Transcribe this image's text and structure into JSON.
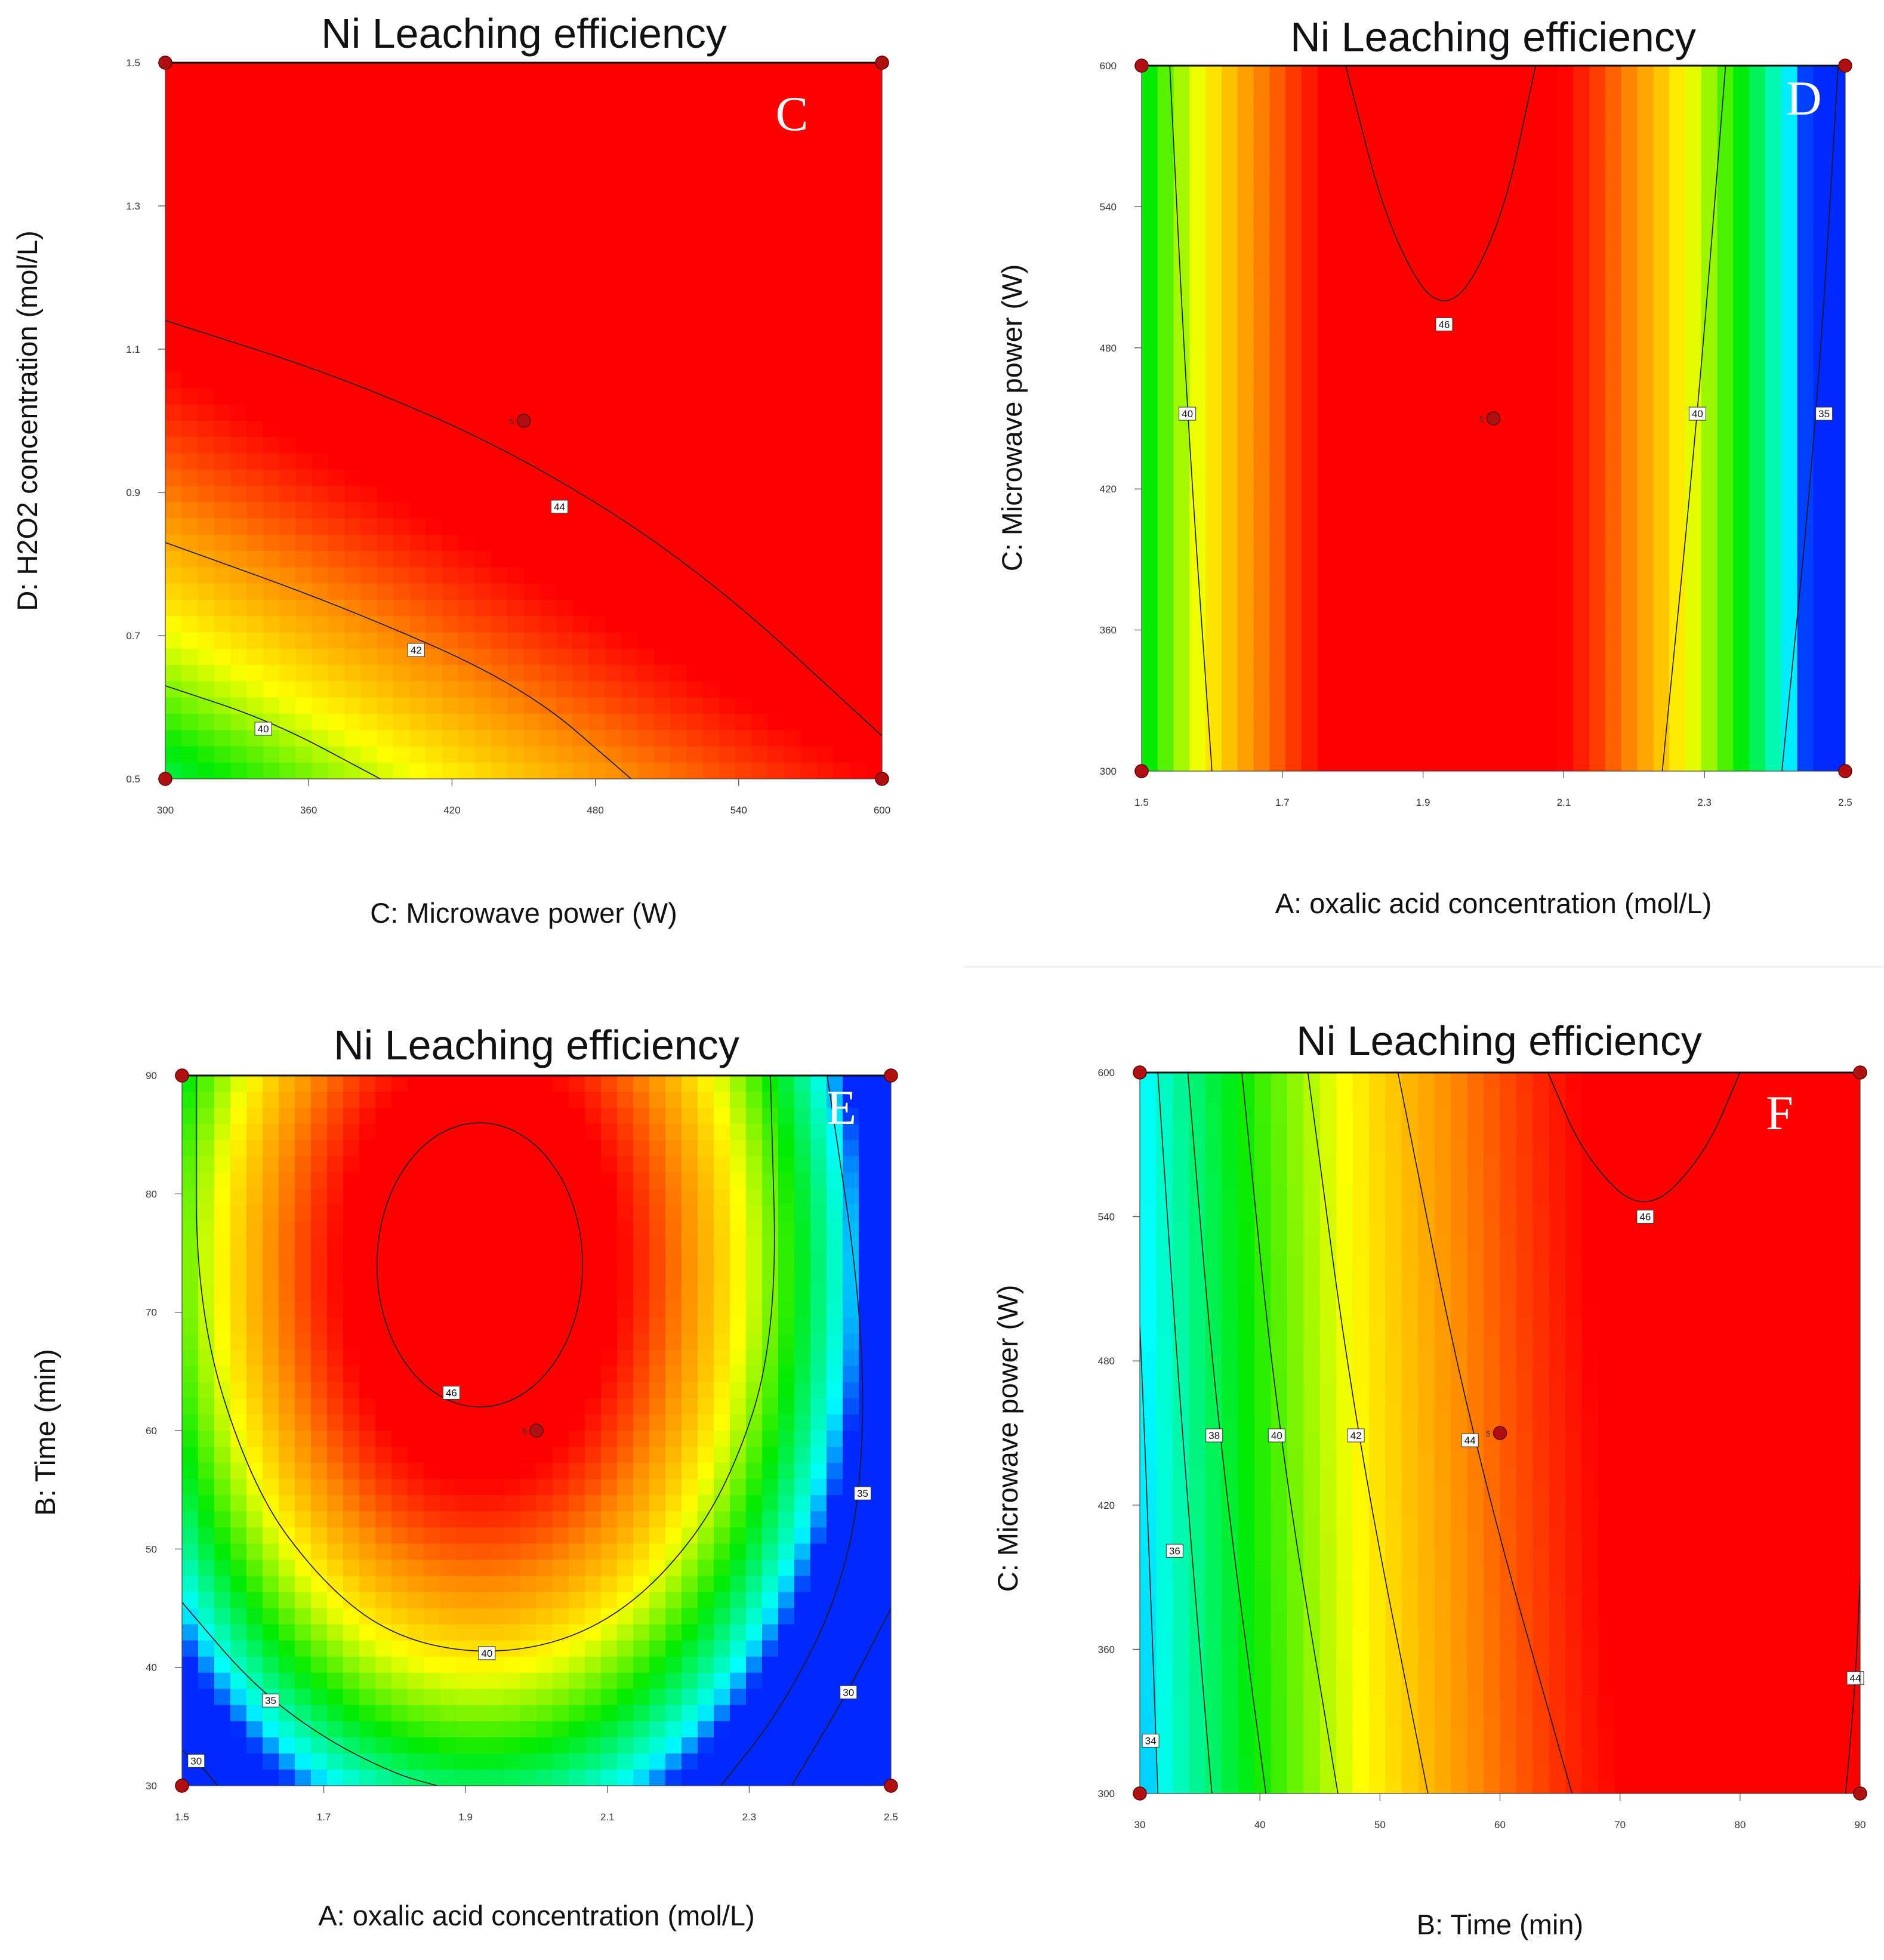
{
  "figure_title": "Ni Leaching efficiency",
  "chart_data": [
    {
      "panel": "C",
      "type": "heatmap",
      "title": "Ni Leaching efficiency",
      "xlabel": "C: Microwave power (W)",
      "ylabel": "D: H2O2 concentration (mol/L)",
      "xlim": [
        300,
        600
      ],
      "ylim": [
        0.5,
        1.5
      ],
      "xticks": [
        "300",
        "360",
        "420",
        "480",
        "540",
        "600"
      ],
      "yticks": [
        "0.5",
        "0.7",
        "0.9",
        "1.1",
        "1.3",
        "1.5"
      ],
      "contour_labels": [
        "40",
        "42",
        "44"
      ],
      "center_point_label": "5",
      "design_points": [
        {
          "x": 300,
          "y": 1.5
        },
        {
          "x": 600,
          "y": 1.5
        },
        {
          "x": 300,
          "y": 0.5
        },
        {
          "x": 600,
          "y": 0.5
        },
        {
          "x": 450,
          "y": 1.0
        }
      ],
      "contours": [
        {
          "level": 44,
          "label_at": {
            "x": 465,
            "y": 0.88
          },
          "points": [
            [
              300,
              1.14
            ],
            [
              375,
              1.06
            ],
            [
              450,
              0.95
            ],
            [
              525,
              0.79
            ],
            [
              600,
              0.56
            ]
          ]
        },
        {
          "level": 42,
          "label_at": {
            "x": 405,
            "y": 0.68
          },
          "points": [
            [
              300,
              0.83
            ],
            [
              375,
              0.74
            ],
            [
              450,
              0.63
            ],
            [
              495,
              0.5
            ]
          ]
        },
        {
          "level": 40,
          "label_at": {
            "x": 341,
            "y": 0.57
          },
          "points": [
            [
              300,
              0.63
            ],
            [
              345,
              0.58
            ],
            [
              390,
              0.5
            ]
          ]
        }
      ]
    },
    {
      "panel": "D",
      "type": "heatmap",
      "title": "Ni Leaching efficiency",
      "xlabel": "A: oxalic acid concentration (mol/L)",
      "ylabel": "C: Microwave power (W)",
      "xlim": [
        1.5,
        2.5
      ],
      "ylim": [
        300,
        600
      ],
      "xticks": [
        "1.5",
        "1.7",
        "1.9",
        "2.1",
        "2.3",
        "2.5"
      ],
      "yticks": [
        "300",
        "360",
        "420",
        "480",
        "540",
        "600"
      ],
      "contour_labels": [
        "40",
        "46",
        "40",
        "35"
      ],
      "center_point_label": "5",
      "design_points": [
        {
          "x": 1.5,
          "y": 600
        },
        {
          "x": 2.5,
          "y": 600
        },
        {
          "x": 1.5,
          "y": 300
        },
        {
          "x": 2.5,
          "y": 300
        },
        {
          "x": 2.0,
          "y": 450
        }
      ],
      "contours": [
        {
          "level": 40,
          "label_at": {
            "x": 1.565,
            "y": 452
          },
          "points": [
            [
              1.54,
              600
            ],
            [
              1.565,
              450
            ],
            [
              1.6,
              300
            ]
          ]
        },
        {
          "level": 46,
          "label_at": {
            "x": 1.93,
            "y": 490
          },
          "points": [
            [
              1.79,
              600
            ],
            [
              1.85,
              530
            ],
            [
              1.93,
              490
            ],
            [
              2.01,
              530
            ],
            [
              2.06,
              600
            ]
          ]
        },
        {
          "level": 40,
          "label_at": {
            "x": 2.29,
            "y": 452
          },
          "points": [
            [
              2.33,
              600
            ],
            [
              2.29,
              450
            ],
            [
              2.24,
              300
            ]
          ]
        },
        {
          "level": 35,
          "label_at": {
            "x": 2.47,
            "y": 452
          },
          "points": [
            [
              2.49,
              600
            ],
            [
              2.46,
              450
            ],
            [
              2.41,
              300
            ]
          ]
        }
      ]
    },
    {
      "panel": "E",
      "type": "heatmap",
      "title": "Ni Leaching efficiency",
      "xlabel": "A: oxalic acid concentration (mol/L)",
      "ylabel": "B: Time (min)",
      "xlim": [
        1.5,
        2.5
      ],
      "ylim": [
        30,
        90
      ],
      "xticks": [
        "1.5",
        "1.7",
        "1.9",
        "2.1",
        "2.3",
        "2.5"
      ],
      "yticks": [
        "30",
        "40",
        "50",
        "60",
        "70",
        "80",
        "90"
      ],
      "contour_labels": [
        "46",
        "40",
        "35",
        "35",
        "30",
        "30"
      ],
      "center_point_label": "5",
      "design_points": [
        {
          "x": 1.5,
          "y": 90
        },
        {
          "x": 2.5,
          "y": 90
        },
        {
          "x": 1.5,
          "y": 30
        },
        {
          "x": 2.5,
          "y": 30
        },
        {
          "x": 2.0,
          "y": 60
        }
      ],
      "contours": [
        {
          "level": 46,
          "closed": true,
          "label_at": {
            "x": 1.88,
            "y": 63.2
          },
          "ellipse": {
            "cx": 1.92,
            "cy": 74,
            "rx": 0.145,
            "ry": 12
          }
        },
        {
          "level": 40,
          "label_at": {
            "x": 1.93,
            "y": 41.2
          },
          "points": [
            [
              1.52,
              90
            ],
            [
              1.52,
              70
            ],
            [
              1.6,
              55
            ],
            [
              1.7,
              47
            ],
            [
              1.8,
              42.5
            ],
            [
              1.93,
              41
            ],
            [
              2.06,
              42.5
            ],
            [
              2.17,
              47
            ],
            [
              2.27,
              55
            ],
            [
              2.34,
              68
            ],
            [
              2.33,
              90
            ]
          ]
        },
        {
          "level": 35,
          "label_at": {
            "x": 1.625,
            "y": 37.2
          },
          "points": [
            [
              1.5,
              45.5
            ],
            [
              1.6,
              38.5
            ],
            [
              1.7,
              34
            ],
            [
              1.8,
              31
            ],
            [
              1.86,
              30
            ]
          ]
        },
        {
          "level": 35,
          "label_at": {
            "x": 2.46,
            "y": 54.7
          },
          "points": [
            [
              2.41,
              90
            ],
            [
              2.46,
              70
            ],
            [
              2.46,
              55
            ],
            [
              2.42,
              45
            ],
            [
              2.34,
              36
            ],
            [
              2.26,
              30
            ]
          ]
        },
        {
          "level": 30,
          "label_at": {
            "x": 1.52,
            "y": 32.1
          },
          "points": [
            [
              1.5,
              33
            ],
            [
              1.53,
              31.5
            ],
            [
              1.55,
              30
            ]
          ]
        },
        {
          "level": 30,
          "label_at": {
            "x": 2.44,
            "y": 37.9
          },
          "points": [
            [
              2.5,
              45
            ],
            [
              2.44,
              38
            ],
            [
              2.36,
              30
            ]
          ]
        }
      ]
    },
    {
      "panel": "F",
      "type": "heatmap",
      "title": "Ni Leaching efficiency",
      "xlabel": "B: Time (min)",
      "ylabel": "C: Microwave power (W)",
      "xlim": [
        30,
        90
      ],
      "ylim": [
        300,
        600
      ],
      "xticks": [
        "30",
        "40",
        "50",
        "60",
        "70",
        "80",
        "90"
      ],
      "yticks": [
        "300",
        "360",
        "420",
        "480",
        "540",
        "600"
      ],
      "contour_labels": [
        "46",
        "38",
        "40",
        "42",
        "44",
        "36",
        "34",
        "44"
      ],
      "center_point_label": "5",
      "design_points": [
        {
          "x": 30,
          "y": 600
        },
        {
          "x": 90,
          "y": 600
        },
        {
          "x": 30,
          "y": 300
        },
        {
          "x": 90,
          "y": 300
        },
        {
          "x": 60,
          "y": 450
        }
      ],
      "contours": [
        {
          "level": 46,
          "label_at": {
            "x": 72.1,
            "y": 540
          },
          "points": [
            [
              64,
              600
            ],
            [
              67,
              565
            ],
            [
              72,
              540
            ],
            [
              77,
              565
            ],
            [
              80,
              600
            ]
          ]
        },
        {
          "level": 34,
          "label_at": {
            "x": 30.9,
            "y": 322
          },
          "points": [
            [
              30,
              495
            ],
            [
              30.8,
              400
            ],
            [
              31.5,
              300
            ]
          ]
        },
        {
          "level": 36,
          "label_at": {
            "x": 32.9,
            "y": 401
          },
          "points": [
            [
              31.5,
              600
            ],
            [
              33.5,
              450
            ],
            [
              36,
              300
            ]
          ]
        },
        {
          "level": 38,
          "label_at": {
            "x": 36.2,
            "y": 449
          },
          "points": [
            [
              34,
              600
            ],
            [
              36.5,
              450
            ],
            [
              40.5,
              300
            ]
          ]
        },
        {
          "level": 40,
          "label_at": {
            "x": 41.4,
            "y": 449
          },
          "points": [
            [
              38.5,
              600
            ],
            [
              41.5,
              450
            ],
            [
              46.5,
              300
            ]
          ]
        },
        {
          "level": 42,
          "label_at": {
            "x": 48,
            "y": 449
          },
          "points": [
            [
              44,
              600
            ],
            [
              48,
              450
            ],
            [
              54,
              300
            ]
          ]
        },
        {
          "level": 44,
          "label_at": {
            "x": 57.5,
            "y": 447
          },
          "points": [
            [
              51.5,
              600
            ],
            [
              57.5,
              450
            ],
            [
              66,
              300
            ]
          ]
        },
        {
          "level": 44,
          "label_at": {
            "x": 89.6,
            "y": 348
          },
          "points": [
            [
              88.8,
              300
            ],
            [
              89.6,
              345
            ],
            [
              90,
              390
            ]
          ]
        }
      ]
    }
  ]
}
